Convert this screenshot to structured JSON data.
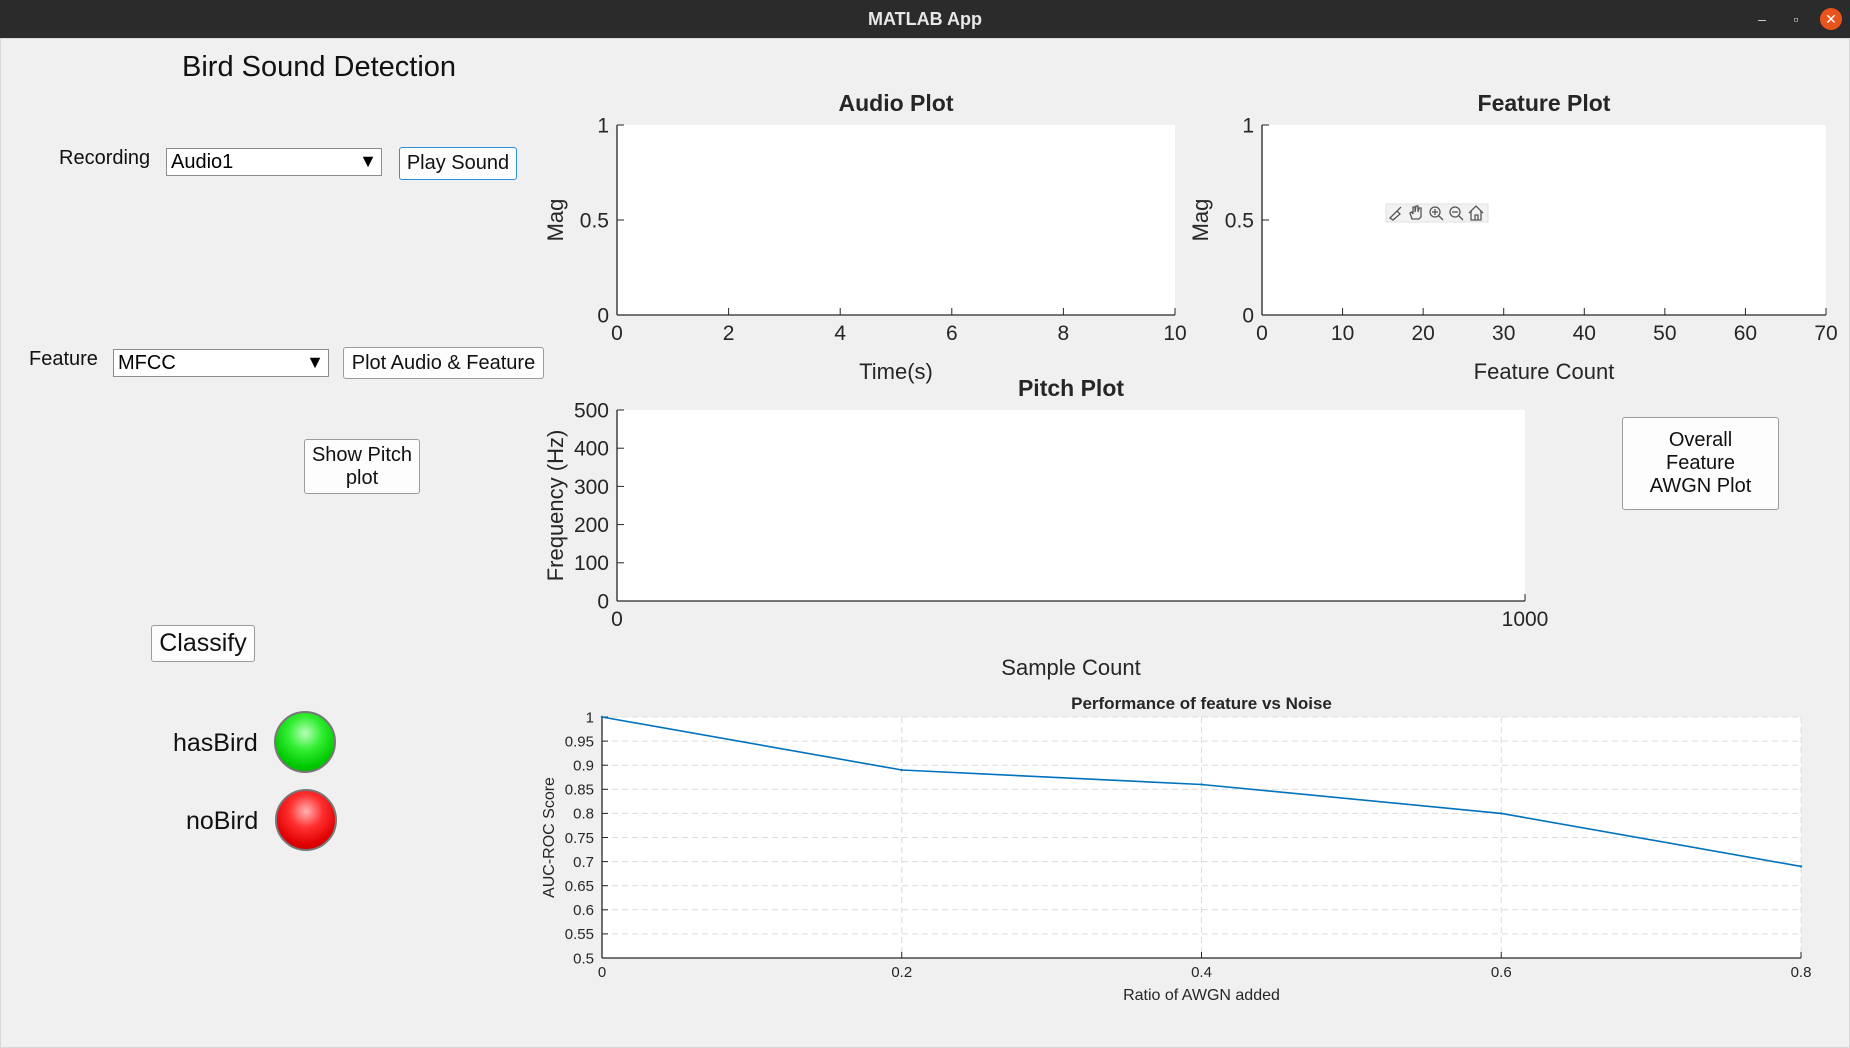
{
  "window": {
    "title": "MATLAB App",
    "minimize_glyph": "–",
    "maximize_glyph": "▫",
    "close_glyph": "✕"
  },
  "app": {
    "heading": "Bird Sound Detection",
    "recording": {
      "label": "Recording",
      "selected": "Audio1",
      "arrow": "▼"
    },
    "play_button": "Play Sound",
    "feature": {
      "label": "Feature",
      "selected": "MFCC",
      "arrow": "▼"
    },
    "plot_button": "Plot Audio & Feature",
    "pitch_button": "Show Pitch plot",
    "awgn_button": "Overall Feature AWGN Plot",
    "classify_button": "Classify",
    "lamps": {
      "has_bird": "hasBird",
      "no_bird": "noBird",
      "has_bird_color": "#00d000",
      "no_bird_color": "#e00000"
    }
  },
  "axes_toolbar": [
    "brush-icon",
    "pan-icon",
    "zoom-in-icon",
    "zoom-out-icon",
    "home-icon"
  ],
  "chart_data": [
    {
      "type": "line",
      "title": "Audio Plot",
      "xlabel": "Time(s)",
      "ylabel": "Mag",
      "xlim": [
        0,
        10
      ],
      "ylim": [
        0,
        1
      ],
      "xticks": [
        "0",
        "2",
        "4",
        "6",
        "8",
        "10"
      ],
      "yticks": [
        "0",
        "0.5",
        "1"
      ],
      "series": []
    },
    {
      "type": "line",
      "title": "Feature Plot",
      "xlabel": "Feature Count",
      "ylabel": "Mag",
      "xlim": [
        0,
        70
      ],
      "ylim": [
        0,
        1
      ],
      "xticks": [
        "0",
        "10",
        "20",
        "30",
        "40",
        "50",
        "60",
        "70"
      ],
      "yticks": [
        "0",
        "0.5",
        "1"
      ],
      "series": []
    },
    {
      "type": "line",
      "title": "Pitch Plot",
      "xlabel": "Sample Count",
      "ylabel": "Frequency (Hz)",
      "xlim": [
        0,
        1000
      ],
      "ylim": [
        0,
        500
      ],
      "xticks": [
        "0",
        "1000"
      ],
      "yticks": [
        "0",
        "100",
        "200",
        "300",
        "400",
        "500"
      ],
      "series": []
    },
    {
      "type": "line",
      "title": "Performance of feature vs Noise",
      "xlabel": "Ratio of AWGN added",
      "ylabel": "AUC-ROC Score",
      "xlim": [
        0,
        0.8
      ],
      "ylim": [
        0.5,
        1
      ],
      "grid": true,
      "xticks": [
        "0",
        "0.2",
        "0.4",
        "0.6",
        "0.8"
      ],
      "yticks": [
        "0.5",
        "0.55",
        "0.6",
        "0.65",
        "0.7",
        "0.75",
        "0.8",
        "0.85",
        "0.9",
        "0.95",
        "1"
      ],
      "series": [
        {
          "x": [
            0,
            0.2,
            0.4,
            0.6,
            0.8
          ],
          "y": [
            1.0,
            0.89,
            0.86,
            0.8,
            0.69
          ],
          "color": "#0072bd"
        }
      ]
    }
  ]
}
